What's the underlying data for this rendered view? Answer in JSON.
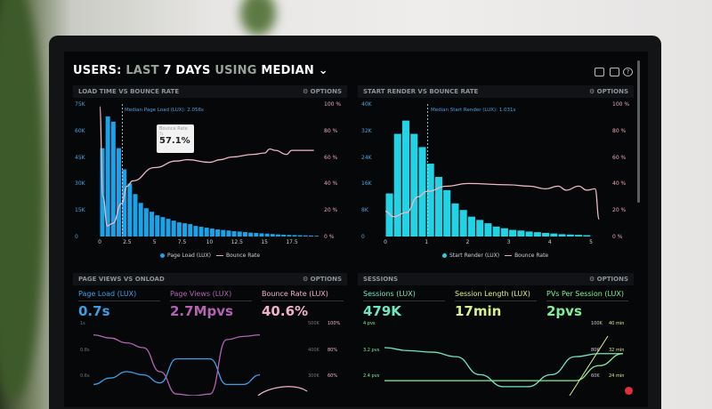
{
  "header": {
    "users": "USERS:",
    "last": "LAST",
    "days": "7 DAYS",
    "using": "USING",
    "median": "MEDIAN",
    "chevron": "⌄"
  },
  "toolbar": {
    "icons": [
      "monitor-icon",
      "share-icon",
      "help-icon"
    ],
    "help": "?"
  },
  "panels": {
    "load": {
      "title": "LOAD TIME VS BOUNCE RATE",
      "options": "⚙ OPTIONS",
      "median_label": "Median Page Load (LUX): 2.056s",
      "tooltip": {
        "title": "Bounce Rate",
        "sub": "7s",
        "value": "57.1%"
      },
      "legend": [
        "Page Load (LUX)",
        "Bounce Rate"
      ]
    },
    "render": {
      "title": "START RENDER VS BOUNCE RATE",
      "options": "⚙ OPTIONS",
      "median_label": "Median Start Render (LUX): 1.031s",
      "legend": [
        "Start Render (LUX)",
        "Bounce Rate"
      ]
    },
    "pageviews": {
      "title": "PAGE VIEWS VS ONLOAD",
      "options": "⚙ OPTIONS",
      "kpis": [
        {
          "label": "Page Load (LUX)",
          "value": "0.7s",
          "color": "#3aa0e6"
        },
        {
          "label": "Page Views (LUX)",
          "value": "2.7Mpvs",
          "color": "#b463b4"
        },
        {
          "label": "Bounce Rate (LUX)",
          "value": "40.6%",
          "color": "#f0b3c6"
        }
      ],
      "left_ticks": [
        "1s",
        "0.8s",
        "0.6s"
      ],
      "right_ticks_a": [
        "500K",
        "400K",
        "300K"
      ],
      "right_ticks_b": [
        "100%",
        "80%",
        "60%"
      ]
    },
    "sessions": {
      "title": "SESSIONS",
      "options": "⚙ OPTIONS",
      "kpis": [
        {
          "label": "Sessions (LUX)",
          "value": "479K",
          "color": "#6ee8c0"
        },
        {
          "label": "Session Length (LUX)",
          "value": "17min",
          "color": "#d9f08a"
        },
        {
          "label": "PVs Per Session (LUX)",
          "value": "2pvs",
          "color": "#7ff09a"
        }
      ],
      "left_ticks": [
        "4 pvs",
        "3.2 pvs",
        "2.4 pvs"
      ],
      "right_ticks_a": [
        "100K",
        "80K",
        "60K"
      ],
      "right_ticks_b": [
        "40 min",
        "32 min",
        "24 min"
      ]
    }
  },
  "colors": {
    "bar1": "#1aa3e8",
    "bar2": "#22d3e6",
    "bounce": "#f0b8c2"
  },
  "chart_data": [
    {
      "type": "bar",
      "title": "LOAD TIME VS BOUNCE RATE",
      "ylim": [
        0,
        75000
      ],
      "y2lim": [
        0,
        100
      ],
      "x_ticks": [
        "0",
        "2.5",
        "5",
        "7.5",
        "10",
        "12.5",
        "15",
        "17.5"
      ],
      "y_ticks": [
        "75K",
        "60K",
        "45K",
        "30K",
        "15K",
        "0"
      ],
      "y2_ticks": [
        "100 %",
        "80 %",
        "60 %",
        "40 %",
        "20 %",
        "0 %"
      ],
      "bin_width": 0.5,
      "series": [
        {
          "name": "Page Load (LUX)",
          "values": [
            50,
            68,
            65,
            50,
            38,
            30,
            24,
            19,
            16,
            14,
            12,
            11,
            10,
            9,
            8,
            7.5,
            7,
            6,
            5.5,
            5,
            4.5,
            4,
            3.7,
            3.4,
            3,
            2.8,
            2.5,
            2.2,
            2,
            1.8,
            1.6,
            1.4,
            1.2,
            1,
            0.9,
            0.8,
            0.7,
            0.6,
            0.5,
            0.4
          ],
          "unit": "K"
        },
        {
          "name": "Bounce Rate",
          "points": [
            [
              0,
              98
            ],
            [
              0.3,
              30
            ],
            [
              0.7,
              8
            ],
            [
              1.2,
              10
            ],
            [
              2,
              25
            ],
            [
              2.5,
              38
            ],
            [
              3,
              42
            ],
            [
              5,
              52
            ],
            [
              7,
              57
            ],
            [
              8,
              58
            ],
            [
              10,
              56
            ],
            [
              11,
              58
            ],
            [
              12,
              60
            ],
            [
              14,
              62
            ],
            [
              15,
              63
            ],
            [
              15.5,
              66
            ],
            [
              16,
              65
            ],
            [
              17,
              62
            ],
            [
              17.5,
              65
            ],
            [
              19.5,
              65
            ]
          ]
        }
      ]
    },
    {
      "type": "bar",
      "title": "START RENDER VS BOUNCE RATE",
      "ylim": [
        0,
        40000
      ],
      "y2lim": [
        0,
        100
      ],
      "x_ticks": [
        "0",
        "1",
        "2",
        "3",
        "4",
        "5"
      ],
      "y_ticks": [
        "40K",
        "32K",
        "24K",
        "16K",
        "8K",
        "0"
      ],
      "y2_ticks": [
        "100 %",
        "80 %",
        "60 %",
        "40 %",
        "20 %",
        "0 %"
      ],
      "bin_width": 0.2,
      "series": [
        {
          "name": "Start Render (LUX)",
          "values": [
            13,
            31,
            35,
            31,
            27,
            22,
            18,
            14,
            10,
            8,
            6,
            5,
            4,
            3,
            2.5,
            2,
            1.8,
            1.5,
            1.3,
            1.1,
            0.9,
            0.7,
            0.6,
            0.5,
            0.4
          ],
          "unit": "K"
        },
        {
          "name": "Bounce Rate",
          "points": [
            [
              0,
              19
            ],
            [
              0.2,
              15
            ],
            [
              0.5,
              18
            ],
            [
              0.8,
              30
            ],
            [
              1,
              34
            ],
            [
              1.5,
              38
            ],
            [
              2,
              40
            ],
            [
              3,
              39
            ],
            [
              3.5,
              38
            ],
            [
              3.9,
              36
            ],
            [
              4.2,
              38
            ],
            [
              4.4,
              35
            ],
            [
              4.7,
              38
            ],
            [
              4.9,
              35
            ],
            [
              5.1,
              36
            ],
            [
              5.2,
              13
            ]
          ]
        }
      ]
    },
    {
      "type": "line",
      "title": "PAGE VIEWS VS ONLOAD",
      "series": [
        {
          "name": "Page Load (LUX)",
          "values": [
            0.62,
            0.66,
            0.7,
            0.68,
            0.63,
            0.78,
            0.78,
            0.78,
            0.62,
            0.62,
            0.68
          ]
        },
        {
          "name": "Page Views (LUX)",
          "values": [
            0.93,
            0.91,
            0.88,
            0.85,
            0.7,
            0.56,
            0.55,
            0.56,
            0.9,
            0.92,
            0.93
          ]
        }
      ]
    },
    {
      "type": "line",
      "title": "SESSIONS",
      "series": [
        {
          "name": "Sessions (LUX)",
          "values": [
            3.2,
            3.1,
            3.05,
            2.9,
            2.3,
            1.9,
            1.9,
            2.3,
            2.9,
            3.0,
            3.0
          ]
        },
        {
          "name": "PVs Per Session (LUX)",
          "values": [
            2.1,
            2.1,
            2.1,
            2.1,
            2.1,
            2.1,
            2.1,
            2.1,
            2.1,
            2.6,
            3.0
          ]
        }
      ]
    }
  ]
}
